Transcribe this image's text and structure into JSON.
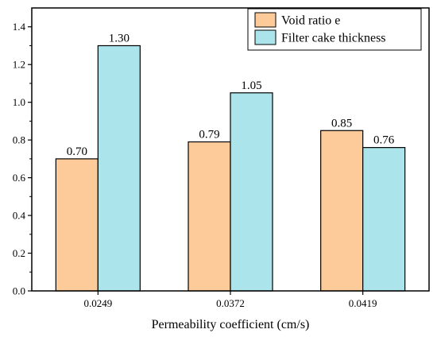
{
  "chart_data": {
    "type": "bar",
    "title": "",
    "xlabel": "Permeability coefficient (cm/s)",
    "ylabel": "",
    "categories": [
      "0.0249",
      "0.0372",
      "0.0419"
    ],
    "series": [
      {
        "name": "Void ratio e",
        "values": [
          0.7,
          0.79,
          0.85
        ],
        "value_labels": [
          "0.70",
          "0.79",
          "0.85"
        ],
        "color": "#fdcb9a"
      },
      {
        "name": "Filter cake thickness",
        "values": [
          1.3,
          1.05,
          0.76
        ],
        "value_labels": [
          "1.30",
          "1.05",
          "0.76"
        ],
        "color": "#abe4ea"
      }
    ],
    "ylim": [
      0,
      1.5
    ],
    "yticks": [
      0.0,
      0.2,
      0.4,
      0.6,
      0.8,
      1.0,
      1.2,
      1.4
    ],
    "ytick_labels": [
      "0.0",
      "0.2",
      "0.4",
      "0.6",
      "0.8",
      "1.0",
      "1.2",
      "1.4"
    ],
    "legend_position": "top-right",
    "grid": false
  }
}
